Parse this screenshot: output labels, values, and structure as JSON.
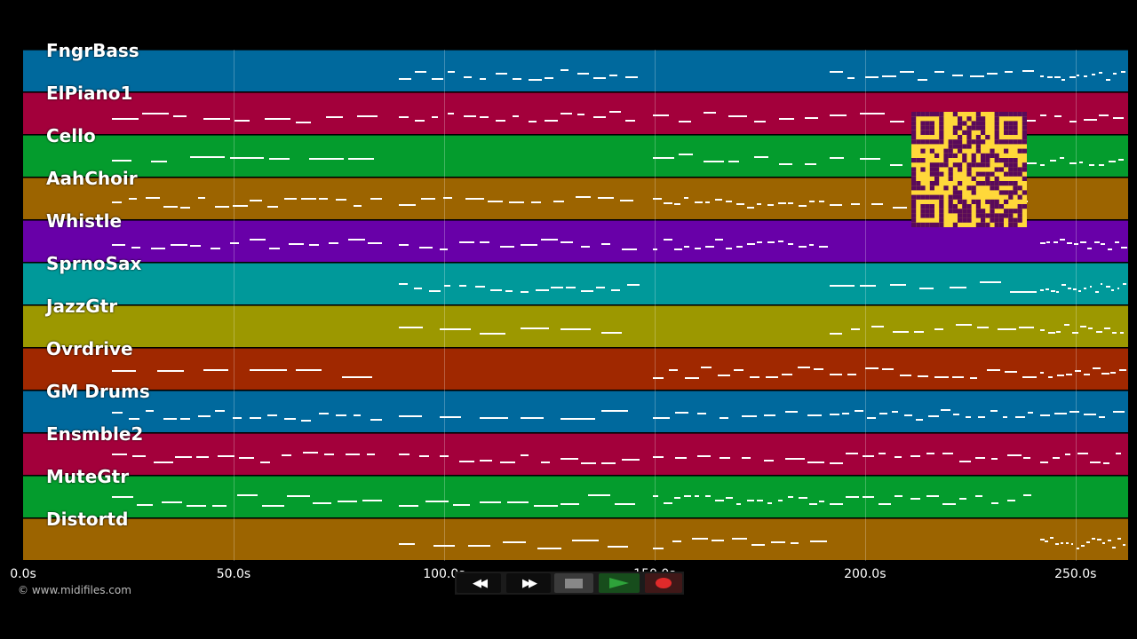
{
  "tracks": [
    {
      "name": "FngrBass",
      "color": "#00699d"
    },
    {
      "name": "ElPiano1",
      "color": "#a3003b"
    },
    {
      "name": "Cello",
      "color": "#049c2d"
    },
    {
      "name": "AahChoir",
      "color": "#9c6400"
    },
    {
      "name": "Whistle",
      "color": "#6800a8"
    },
    {
      "name": "SprnoSax",
      "color": "#00999a"
    },
    {
      "name": "JazzGtr",
      "color": "#9c9800"
    },
    {
      "name": "Ovrdrive",
      "color": "#a02800"
    },
    {
      "name": "GM Drums",
      "color": "#00699d"
    },
    {
      "name": "Ensmble2",
      "color": "#a3003b"
    },
    {
      "name": "MuteGtr",
      "color": "#049c2d"
    },
    {
      "name": "Distortd",
      "color": "#9c6400"
    }
  ],
  "timeline": {
    "ticks": [
      "0.0s",
      "50.0s",
      "100.0s",
      "150.0s",
      "200.0s",
      "250.0s"
    ],
    "tick_values": [
      0,
      50,
      100,
      150,
      200,
      250
    ],
    "duration_s": 262.5
  },
  "copyright": "© www.midifiles.com",
  "transport": {
    "rewind_label": "◀◀",
    "forward_label": "▶▶",
    "stop_color": "#888888",
    "play_color": "#2ea33a",
    "record_color": "#e02a2a"
  },
  "qr": {
    "fg": "#5a0a5a",
    "bg": "#ffd83a"
  }
}
